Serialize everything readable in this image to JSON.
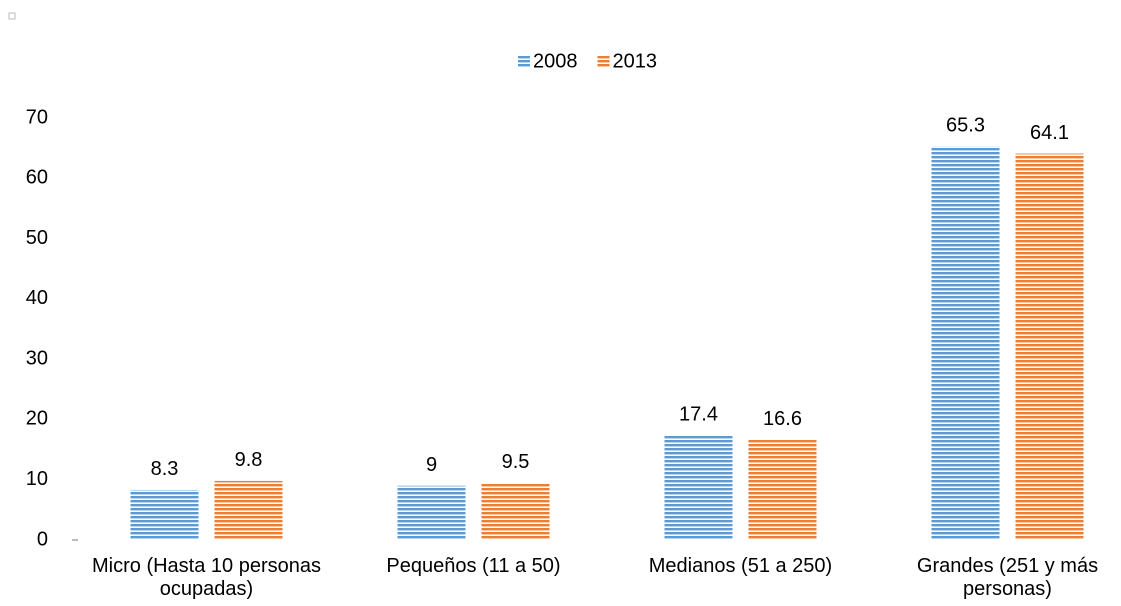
{
  "chart_data": {
    "type": "bar",
    "categories": [
      "Micro (Hasta 10 personas ocupadas)",
      "Pequeños (11 a 50)",
      "Medianos (51 a 250)",
      "Grandes (251 y más personas)"
    ],
    "series": [
      {
        "name": "2008",
        "color": "#5b9bd5",
        "values": [
          8.3,
          9,
          17.4,
          65.3
        ]
      },
      {
        "name": "2013",
        "color": "#ed7d31",
        "values": [
          9.8,
          9.5,
          16.6,
          64.1
        ]
      }
    ],
    "ylim": [
      0,
      70
    ],
    "yticks": [
      0,
      10,
      20,
      30,
      40,
      50,
      60,
      70
    ],
    "legend": "top",
    "grid": false
  }
}
